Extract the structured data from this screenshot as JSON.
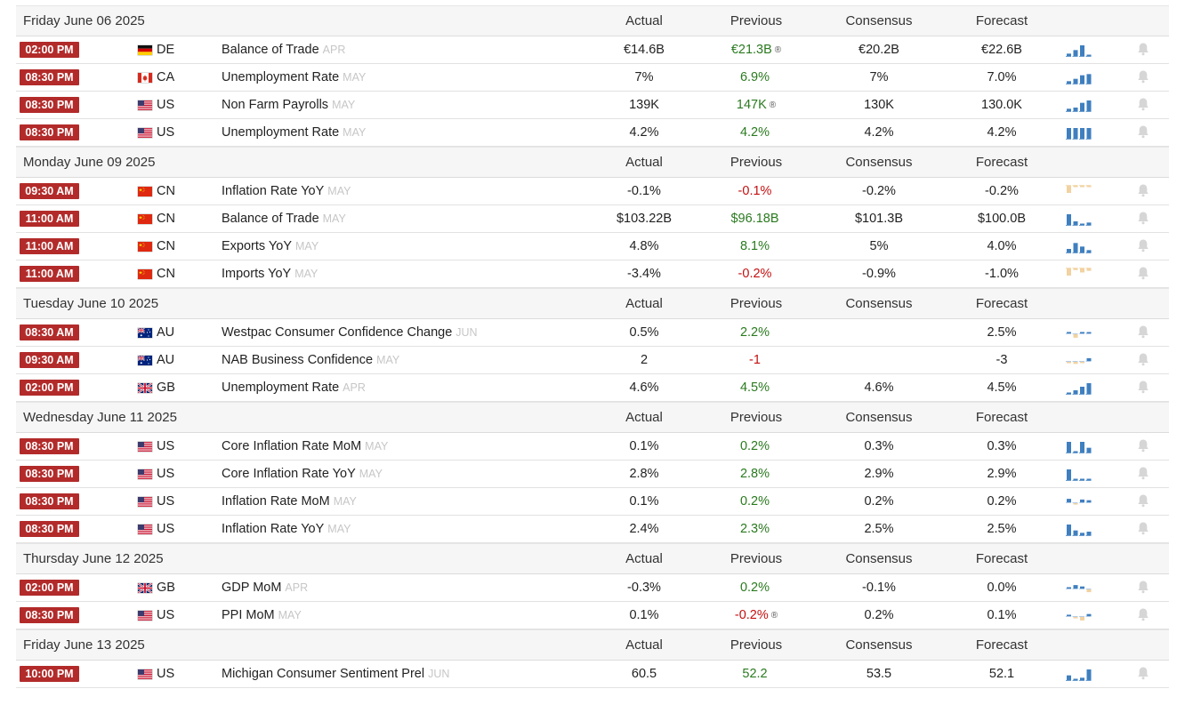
{
  "groups": [
    {
      "date": "Friday June 06 2025",
      "headers": {
        "actual": "Actual",
        "previous": "Previous",
        "consensus": "Consensus",
        "forecast": "Forecast"
      },
      "events": [
        {
          "time": "02:00 PM",
          "flag": "de",
          "country": "DE",
          "event": "Balance of Trade",
          "period": "APR",
          "actual": "€14.6B",
          "previous": "€21.3B",
          "prev_color": "green",
          "revised": "®",
          "consensus": "€20.2B",
          "forecast": "€22.6B",
          "spark": [
            2,
            5,
            9,
            1
          ],
          "spark_colors": "bbbb"
        },
        {
          "time": "08:30 PM",
          "flag": "ca",
          "country": "CA",
          "event": "Unemployment Rate",
          "period": "MAY",
          "actual": "7%",
          "previous": "6.9%",
          "prev_color": "green",
          "revised": "",
          "consensus": "7%",
          "forecast": "7.0%",
          "spark": [
            2,
            4,
            7,
            8
          ],
          "spark_colors": "bbbb"
        },
        {
          "time": "08:30 PM",
          "flag": "us",
          "country": "US",
          "event": "Non Farm Payrolls",
          "period": "MAY",
          "actual": "139K",
          "previous": "147K",
          "prev_color": "green",
          "revised": "®",
          "consensus": "130K",
          "forecast": "130.0K",
          "spark": [
            2,
            3,
            7,
            9
          ],
          "spark_colors": "bbbb"
        },
        {
          "time": "08:30 PM",
          "flag": "us",
          "country": "US",
          "event": "Unemployment Rate",
          "period": "MAY",
          "actual": "4.2%",
          "previous": "4.2%",
          "prev_color": "green",
          "revised": "",
          "consensus": "4.2%",
          "forecast": "4.2%",
          "spark": [
            9,
            9,
            9,
            9
          ],
          "spark_colors": "bbbb"
        }
      ]
    },
    {
      "date": "Monday June 09 2025",
      "headers": {
        "actual": "Actual",
        "previous": "Previous",
        "consensus": "Consensus",
        "forecast": "Forecast"
      },
      "events": [
        {
          "time": "09:30 AM",
          "flag": "cn",
          "country": "CN",
          "event": "Inflation Rate YoY",
          "period": "MAY",
          "actual": "-0.1%",
          "previous": "-0.1%",
          "prev_color": "red",
          "revised": "",
          "consensus": "-0.2%",
          "forecast": "-0.2%",
          "spark": [
            -9,
            -1,
            -1,
            -1
          ],
          "spark_colors": "oooo"
        },
        {
          "time": "11:00 AM",
          "flag": "cn",
          "country": "CN",
          "event": "Balance of Trade",
          "period": "MAY",
          "actual": "$103.22B",
          "previous": "$96.18B",
          "prev_color": "green",
          "revised": "",
          "consensus": "$101.3B",
          "forecast": "$100.0B",
          "spark": [
            9,
            3,
            1,
            2
          ],
          "spark_colors": "bbbb"
        },
        {
          "time": "11:00 AM",
          "flag": "cn",
          "country": "CN",
          "event": "Exports YoY",
          "period": "MAY",
          "actual": "4.8%",
          "previous": "8.1%",
          "prev_color": "green",
          "revised": "",
          "consensus": "5%",
          "forecast": "4.0%",
          "spark": [
            3,
            8,
            5,
            2
          ],
          "spark_colors": "bbbb"
        },
        {
          "time": "11:00 AM",
          "flag": "cn",
          "country": "CN",
          "event": "Imports YoY",
          "period": "MAY",
          "actual": "-3.4%",
          "previous": "-0.2%",
          "prev_color": "red",
          "revised": "",
          "consensus": "-0.9%",
          "forecast": "-1.0%",
          "spark": [
            -9,
            -2,
            -5,
            -3
          ],
          "spark_colors": "oooo"
        }
      ]
    },
    {
      "date": "Tuesday June 10 2025",
      "headers": {
        "actual": "Actual",
        "previous": "Previous",
        "consensus": "Consensus",
        "forecast": "Forecast"
      },
      "events": [
        {
          "time": "08:30 AM",
          "flag": "au",
          "country": "AU",
          "event": "Westpac Consumer Confidence Change",
          "period": "JUN",
          "actual": "0.5%",
          "previous": "2.2%",
          "prev_color": "green",
          "revised": "",
          "consensus": "",
          "forecast": "2.5%",
          "spark": [
            2,
            -5,
            2,
            1
          ],
          "spark_colors": "bobb"
        },
        {
          "time": "09:30 AM",
          "flag": "au",
          "country": "AU",
          "event": "NAB Business Confidence",
          "period": "MAY",
          "actual": "2",
          "previous": "-1",
          "prev_color": "red",
          "revised": "",
          "consensus": "",
          "forecast": "-3",
          "spark": [
            -2,
            -3,
            -1,
            4
          ],
          "spark_colors": "ooob"
        },
        {
          "time": "02:00 PM",
          "flag": "gb",
          "country": "GB",
          "event": "Unemployment Rate",
          "period": "APR",
          "actual": "4.6%",
          "previous": "4.5%",
          "prev_color": "green",
          "revised": "",
          "consensus": "4.6%",
          "forecast": "4.5%",
          "spark": [
            1,
            3,
            6,
            9
          ],
          "spark_colors": "bbbb"
        }
      ]
    },
    {
      "date": "Wednesday June 11 2025",
      "headers": {
        "actual": "Actual",
        "previous": "Previous",
        "consensus": "Consensus",
        "forecast": "Forecast"
      },
      "events": [
        {
          "time": "08:30 PM",
          "flag": "us",
          "country": "US",
          "event": "Core Inflation Rate MoM",
          "period": "MAY",
          "actual": "0.1%",
          "previous": "0.2%",
          "prev_color": "green",
          "revised": "",
          "consensus": "0.3%",
          "forecast": "0.3%",
          "spark": [
            9,
            1,
            9,
            4
          ],
          "spark_colors": "bbbb"
        },
        {
          "time": "08:30 PM",
          "flag": "us",
          "country": "US",
          "event": "Core Inflation Rate YoY",
          "period": "MAY",
          "actual": "2.8%",
          "previous": "2.8%",
          "prev_color": "green",
          "revised": "",
          "consensus": "2.9%",
          "forecast": "2.9%",
          "spark": [
            9,
            1,
            1,
            1
          ],
          "spark_colors": "bbbb"
        },
        {
          "time": "08:30 PM",
          "flag": "us",
          "country": "US",
          "event": "Inflation Rate MoM",
          "period": "MAY",
          "actual": "0.1%",
          "previous": "0.2%",
          "prev_color": "green",
          "revised": "",
          "consensus": "0.2%",
          "forecast": "0.2%",
          "spark": [
            5,
            -2,
            4,
            3
          ],
          "spark_colors": "bobb"
        },
        {
          "time": "08:30 PM",
          "flag": "us",
          "country": "US",
          "event": "Inflation Rate YoY",
          "period": "MAY",
          "actual": "2.4%",
          "previous": "2.3%",
          "prev_color": "green",
          "revised": "",
          "consensus": "2.5%",
          "forecast": "2.5%",
          "spark": [
            9,
            4,
            2,
            3
          ],
          "spark_colors": "bbbb"
        }
      ]
    },
    {
      "date": "Thursday June 12 2025",
      "headers": {
        "actual": "Actual",
        "previous": "Previous",
        "consensus": "Consensus",
        "forecast": "Forecast"
      },
      "events": [
        {
          "time": "02:00 PM",
          "flag": "gb",
          "country": "GB",
          "event": "GDP MoM",
          "period": "APR",
          "actual": "-0.3%",
          "previous": "0.2%",
          "prev_color": "green",
          "revised": "",
          "consensus": "-0.1%",
          "forecast": "0.0%",
          "spark": [
            0,
            5,
            3,
            -4
          ],
          "spark_colors": "bbbo"
        },
        {
          "time": "08:30 PM",
          "flag": "us",
          "country": "US",
          "event": "PPI MoM",
          "period": "MAY",
          "actual": "0.1%",
          "previous": "-0.2%",
          "prev_color": "red",
          "revised": "®",
          "consensus": "0.2%",
          "forecast": "0.1%",
          "spark": [
            2,
            -2,
            -5,
            3
          ],
          "spark_colors": "boob"
        }
      ]
    },
    {
      "date": "Friday June 13 2025",
      "headers": {
        "actual": "Actual",
        "previous": "Previous",
        "consensus": "Consensus",
        "forecast": "Forecast"
      },
      "events": [
        {
          "time": "10:00 PM",
          "flag": "us",
          "country": "US",
          "event": "Michigan Consumer Sentiment Prel",
          "period": "JUN",
          "actual": "60.5",
          "previous": "52.2",
          "prev_color": "green",
          "revised": "",
          "consensus": "53.5",
          "forecast": "52.1",
          "spark": [
            4,
            1,
            2,
            9
          ],
          "spark_colors": "bbbb"
        }
      ]
    }
  ],
  "colors": {
    "time_badge": "#b22b2a",
    "positive": "#2a7a1f",
    "negative": "#c41010",
    "spark_up": "#3f7fbf",
    "spark_down": "#f2d2a0"
  }
}
